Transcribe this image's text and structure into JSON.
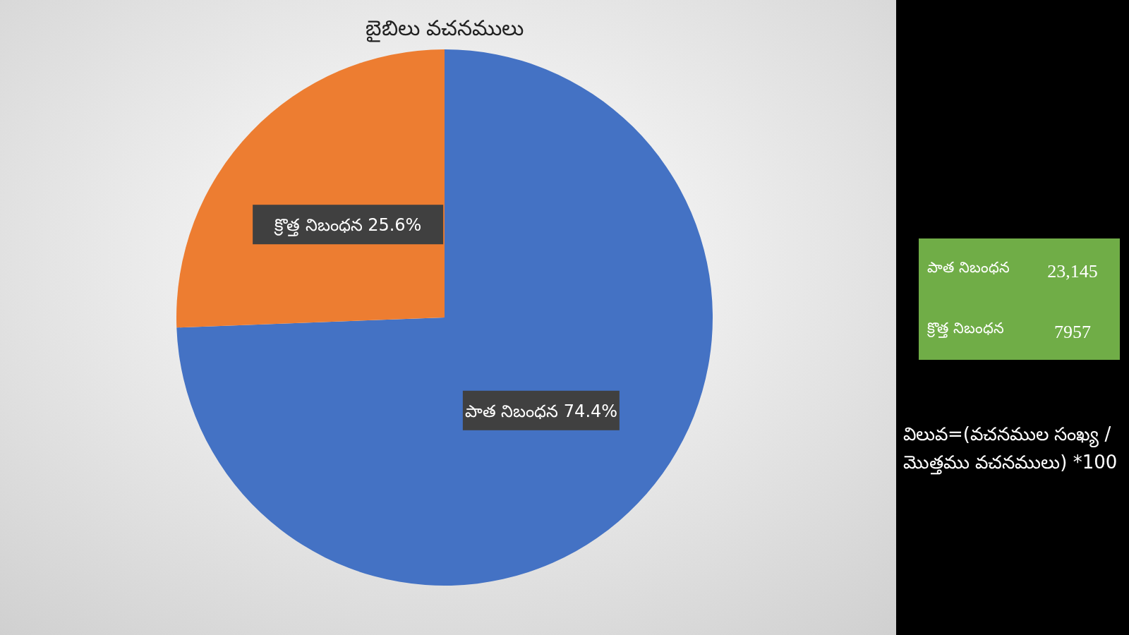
{
  "chart_data": [
    {
      "type": "pie",
      "title": "బైబిలు వచనములు",
      "categories": [
        "పాత నిబంధన",
        "క్రొత్త నిబంధన"
      ],
      "values": [
        74.4,
        25.6
      ],
      "colors": [
        "#4472c4",
        "#ed7d31"
      ],
      "value_labels": [
        "74.4%",
        "25.6%"
      ],
      "annotations": [
        "విలువ=(వచనముల సంఖ్య / మొత్తము వచనములు) *100"
      ]
    },
    {
      "type": "other",
      "annotations": [
        "పాత నిబంధన",
        "23,145",
        "క్రొత్త నిబంధన",
        "7957"
      ]
    }
  ]
}
